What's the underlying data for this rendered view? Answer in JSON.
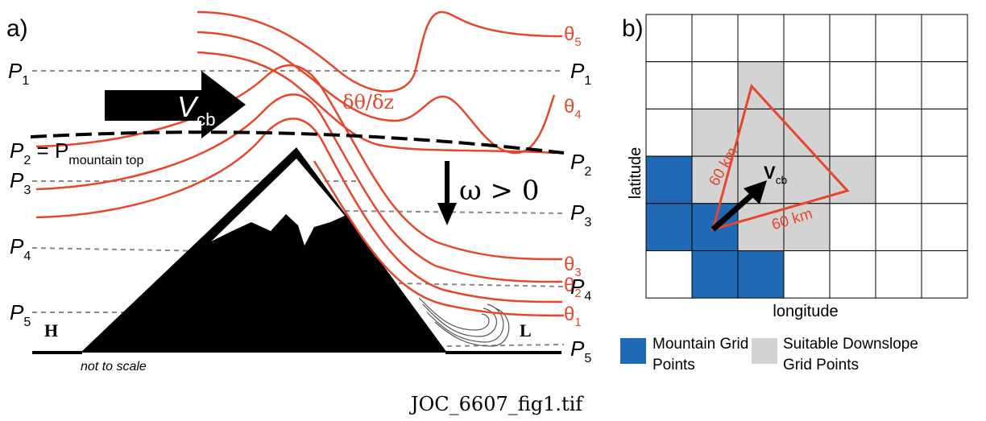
{
  "panel_a": {
    "label": "a)",
    "theta_labels": [
      {
        "base": "θ",
        "sub": "5"
      },
      {
        "base": "θ",
        "sub": "4"
      },
      {
        "base": "θ",
        "sub": "3"
      },
      {
        "base": "θ",
        "sub": "2"
      },
      {
        "base": "θ",
        "sub": "1"
      }
    ],
    "pressure_left": [
      {
        "base": "P",
        "sub": "1"
      },
      {
        "base": "P",
        "sub": "2",
        "eq": " = P",
        "eq_sub": "mountain top"
      },
      {
        "base": "P",
        "sub": "3"
      },
      {
        "base": "P",
        "sub": "4"
      },
      {
        "base": "P",
        "sub": "5"
      }
    ],
    "pressure_right": [
      {
        "base": "P",
        "sub": "1"
      },
      {
        "base": "P",
        "sub": "2"
      },
      {
        "base": "P",
        "sub": "3"
      },
      {
        "base": "P",
        "sub": "4"
      },
      {
        "base": "P",
        "sub": "5"
      }
    ],
    "wind": {
      "base": "V",
      "sub": "cb"
    },
    "lapse": "δθ/δz",
    "omega": "ω > 0",
    "high": "H",
    "low": "L",
    "note": "not to scale"
  },
  "panel_b": {
    "label": "b)",
    "y_axis": "latitude",
    "x_axis": "longitude",
    "distance_labels": [
      "60 km",
      "60 km"
    ],
    "wind": {
      "base": "V",
      "sub": "cb"
    },
    "legend": [
      {
        "lines": [
          "Mountain Grid",
          "Points"
        ]
      },
      {
        "lines": [
          "Suitable Downslope",
          "Grid Points"
        ]
      }
    ]
  },
  "caption": "JOC_6607_fig1.tif"
}
